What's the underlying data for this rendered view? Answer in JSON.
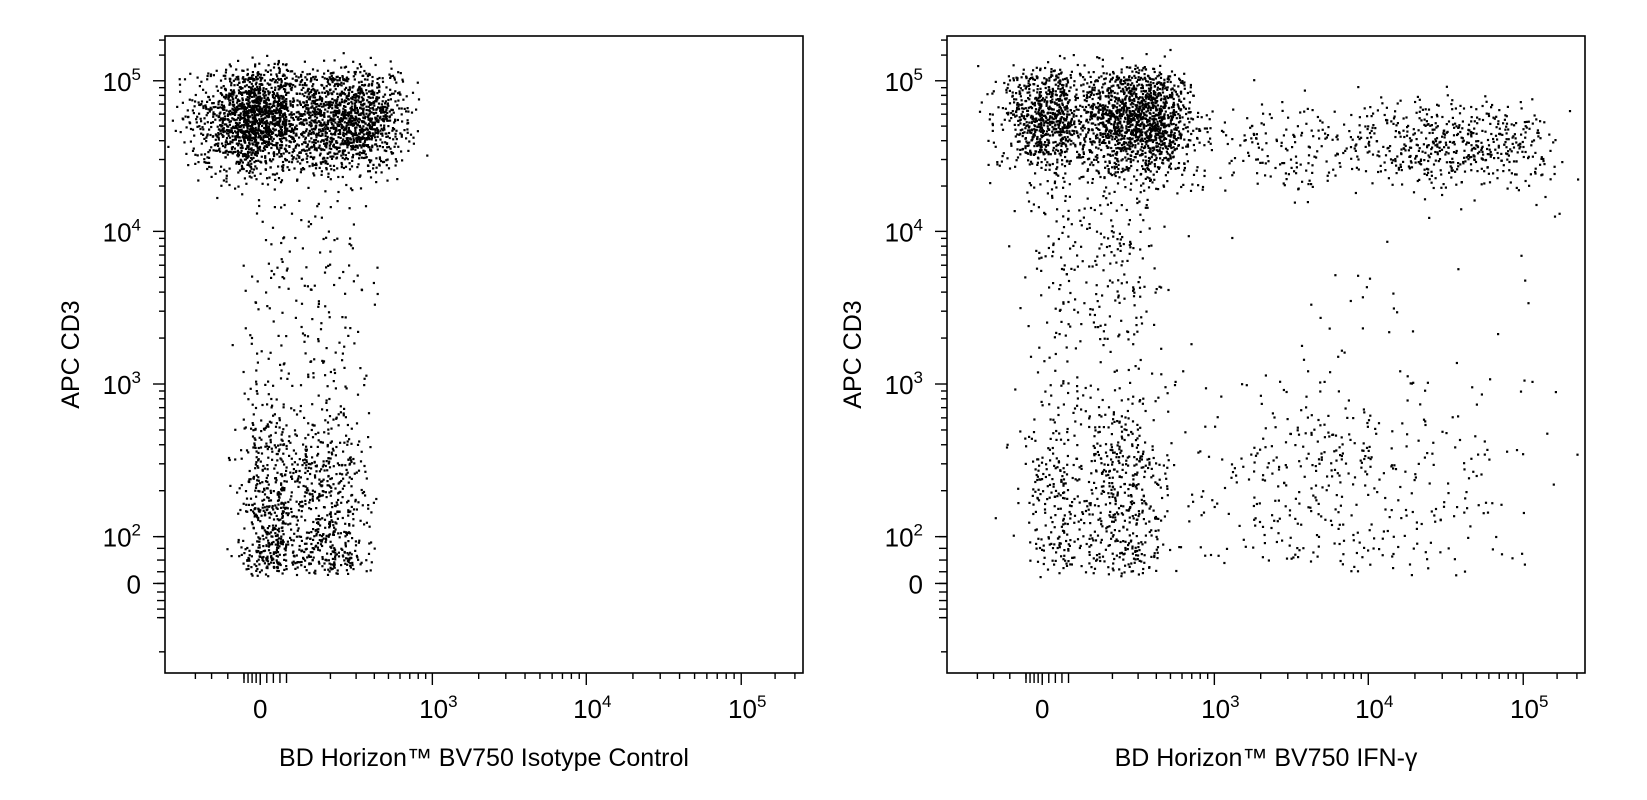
{
  "chart_data": [
    {
      "type": "scatter",
      "title": "",
      "xlabel": "BD Horizon™ BV750 Isotype Control",
      "ylabel": "APC CD3",
      "x_scale": "biexponential",
      "y_scale": "biexponential",
      "x_ticks": [
        {
          "value": 0,
          "base": "0",
          "exp": ""
        },
        {
          "value": 1000,
          "base": "10",
          "exp": "3"
        },
        {
          "value": 10000,
          "base": "10",
          "exp": "4"
        },
        {
          "value": 100000,
          "base": "10",
          "exp": "5"
        }
      ],
      "y_ticks": [
        {
          "value": 0,
          "base": "0",
          "exp": ""
        },
        {
          "value": 100,
          "base": "10",
          "exp": "2"
        },
        {
          "value": 1000,
          "base": "10",
          "exp": "3"
        },
        {
          "value": 10000,
          "base": "10",
          "exp": "4"
        },
        {
          "value": 100000,
          "base": "10",
          "exp": "5"
        }
      ],
      "marker_color": "#000000",
      "populations": [
        {
          "x_center": 100,
          "x_spread": 220,
          "y_center": 55000,
          "y_spread": 1.5,
          "count": 3000
        },
        {
          "x_center": 120,
          "x_spread": 110,
          "y_center": 160,
          "y_spread": 2.3,
          "count": 1100
        },
        {
          "x_center": 140,
          "x_spread": 110,
          "y_center": 4000,
          "y_spread": 2.6,
          "count": 170
        }
      ]
    },
    {
      "type": "scatter",
      "title": "",
      "xlabel": "BD Horizon™ BV750 IFN-γ",
      "ylabel": "APC CD3",
      "x_scale": "biexponential",
      "y_scale": "biexponential",
      "x_ticks": [
        {
          "value": 0,
          "base": "0",
          "exp": ""
        },
        {
          "value": 1000,
          "base": "10",
          "exp": "3"
        },
        {
          "value": 10000,
          "base": "10",
          "exp": "4"
        },
        {
          "value": 100000,
          "base": "10",
          "exp": "5"
        }
      ],
      "y_ticks": [
        {
          "value": 0,
          "base": "0",
          "exp": ""
        },
        {
          "value": 100,
          "base": "10",
          "exp": "2"
        },
        {
          "value": 1000,
          "base": "10",
          "exp": "3"
        },
        {
          "value": 10000,
          "base": "10",
          "exp": "4"
        },
        {
          "value": 100000,
          "base": "10",
          "exp": "5"
        }
      ],
      "marker_color": "#000000",
      "populations": [
        {
          "x_center": 200,
          "x_spread": 200,
          "y_center": 55000,
          "y_spread": 1.5,
          "count": 2300
        },
        {
          "x_center": 3000,
          "x_spread": 5.5,
          "y_center": 38000,
          "y_spread": 1.4,
          "count": 350
        },
        {
          "x_center": 40000,
          "x_spread": 2.0,
          "y_center": 38000,
          "y_spread": 1.35,
          "count": 450
        },
        {
          "x_center": 160,
          "x_spread": 120,
          "y_center": 6000,
          "y_spread": 2.5,
          "count": 280
        },
        {
          "x_center": 170,
          "x_spread": 130,
          "y_center": 180,
          "y_spread": 2.4,
          "count": 700
        },
        {
          "x_center": 6000,
          "x_spread": 4.0,
          "y_center": 220,
          "y_spread": 2.5,
          "count": 450
        },
        {
          "x_center": 8000,
          "x_spread": 9.0,
          "y_center": 5000,
          "y_spread": 3.0,
          "count": 40
        }
      ]
    }
  ]
}
